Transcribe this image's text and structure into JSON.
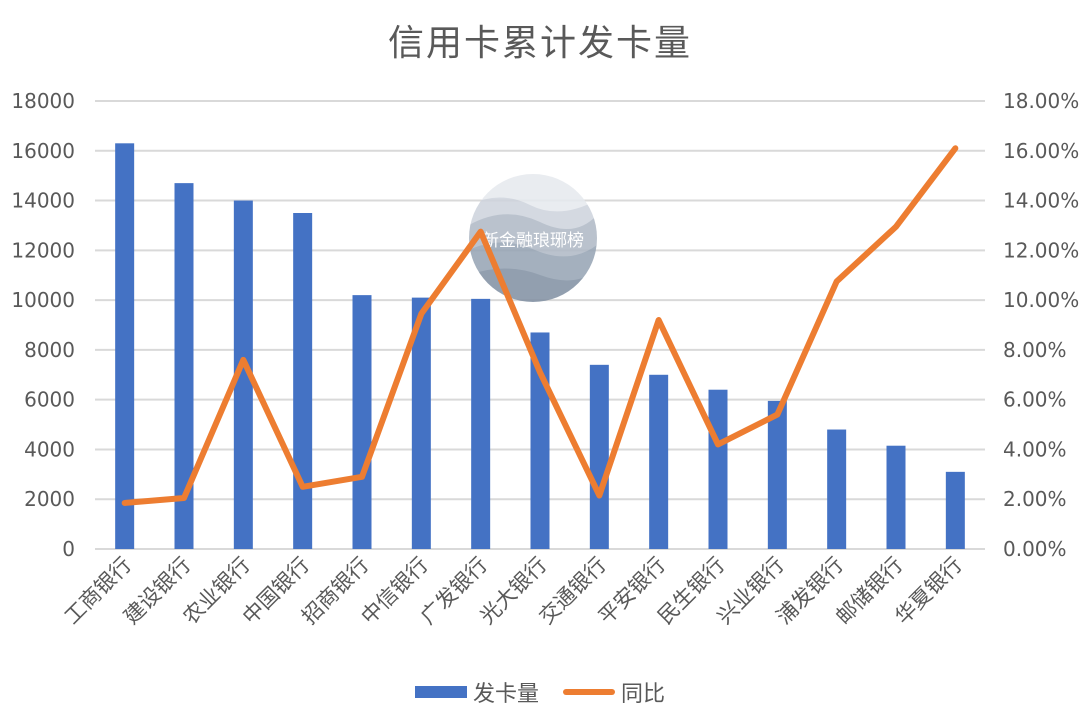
{
  "chart_data": {
    "type": "bar",
    "title": "信用卡累计发卡量",
    "categories": [
      "工商银行",
      "建设银行",
      "农业银行",
      "中国银行",
      "招商银行",
      "中信银行",
      "广发银行",
      "光大银行",
      "交通银行",
      "平安银行",
      "民生银行",
      "兴业银行",
      "浦发银行",
      "邮储银行",
      "华夏银行"
    ],
    "series": [
      {
        "name": "发卡量",
        "type": "bar",
        "axis": "left",
        "color": "#4472C4",
        "values": [
          16300,
          14700,
          14000,
          13500,
          10200,
          10100,
          10050,
          8700,
          7400,
          7000,
          6400,
          5950,
          4800,
          4150,
          3100
        ]
      },
      {
        "name": "同比",
        "type": "line",
        "axis": "right",
        "color": "#ED7D31",
        "values": [
          1.85,
          2.05,
          7.6,
          2.5,
          2.9,
          9.45,
          12.75,
          7.1,
          2.15,
          9.2,
          4.2,
          5.4,
          10.75,
          12.95,
          16.1
        ]
      }
    ],
    "xlabel": "",
    "ylabel": "",
    "ylim": [
      0,
      18000
    ],
    "y2lim": [
      0,
      18
    ],
    "yticks": [
      "0",
      "2000",
      "4000",
      "6000",
      "8000",
      "10000",
      "12000",
      "14000",
      "16000",
      "18000"
    ],
    "y2ticks": [
      "0.00%",
      "2.00%",
      "4.00%",
      "6.00%",
      "8.00%",
      "10.00%",
      "12.00%",
      "14.00%",
      "16.00%",
      "18.00%"
    ],
    "grid": true,
    "legend_position": "bottom"
  },
  "watermark": {
    "text": "新金融琅琊榜"
  },
  "legend": {
    "bar_label": "发卡量",
    "line_label": "同比"
  }
}
